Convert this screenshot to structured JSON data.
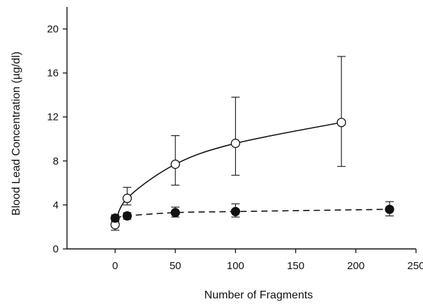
{
  "chart_data": {
    "type": "line",
    "title": "",
    "xlabel": "Number of Fragments",
    "ylabel": "Blood Lead Concentration (µg/dl)",
    "xlim": [
      -40,
      250
    ],
    "ylim": [
      0,
      22
    ],
    "xticks": [
      0,
      50,
      100,
      150,
      200,
      250
    ],
    "yticks": [
      0,
      4,
      8,
      12,
      16,
      20
    ],
    "grid": false,
    "legend": "none",
    "series": [
      {
        "marker": "open-circle",
        "line_style": "solid",
        "points": [
          {
            "x": 0,
            "y": 2.2,
            "err_low": 1.7,
            "err_high": 2.7
          },
          {
            "x": 10,
            "y": 4.6,
            "err_low": 4.0,
            "err_high": 5.6
          },
          {
            "x": 50,
            "y": 7.7,
            "err_low": 5.8,
            "err_high": 10.3
          },
          {
            "x": 100,
            "y": 9.6,
            "err_low": 6.7,
            "err_high": 13.8
          },
          {
            "x": 188,
            "y": 11.5,
            "err_low": 7.5,
            "err_high": 17.5
          }
        ]
      },
      {
        "marker": "filled-circle",
        "line_style": "dashed",
        "points": [
          {
            "x": 0,
            "y": 2.8,
            "err_low": 2.5,
            "err_high": 3.1
          },
          {
            "x": 10,
            "y": 3.0,
            "err_low": 2.7,
            "err_high": 3.3
          },
          {
            "x": 50,
            "y": 3.3,
            "err_low": 2.9,
            "err_high": 3.8
          },
          {
            "x": 100,
            "y": 3.4,
            "err_low": 2.9,
            "err_high": 4.1
          },
          {
            "x": 228,
            "y": 3.6,
            "err_low": 3.0,
            "err_high": 4.3
          }
        ]
      }
    ]
  }
}
